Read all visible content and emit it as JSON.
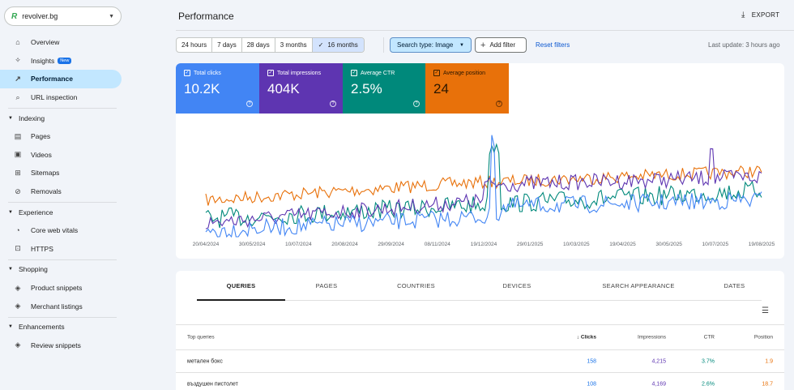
{
  "property": {
    "name": "revolver.bg"
  },
  "sidebar": {
    "items": [
      {
        "label": "Overview",
        "icon": "home-icon",
        "glyph": "⌂"
      },
      {
        "label": "Insights",
        "icon": "lightbulb-icon",
        "glyph": "✧",
        "badge": "New"
      },
      {
        "label": "Performance",
        "icon": "trending-icon",
        "glyph": "↗",
        "active": true
      },
      {
        "label": "URL inspection",
        "icon": "search-icon",
        "glyph": "⌕"
      }
    ],
    "sections": [
      {
        "title": "Indexing",
        "items": [
          {
            "label": "Pages",
            "icon": "pages-icon",
            "glyph": "▤"
          },
          {
            "label": "Videos",
            "icon": "video-icon",
            "glyph": "▣"
          },
          {
            "label": "Sitemaps",
            "icon": "sitemap-icon",
            "glyph": "⊞"
          },
          {
            "label": "Removals",
            "icon": "removal-icon",
            "glyph": "⊘"
          }
        ]
      },
      {
        "title": "Experience",
        "items": [
          {
            "label": "Core web vitals",
            "icon": "speed-icon",
            "glyph": "◔"
          },
          {
            "label": "HTTPS",
            "icon": "lock-icon",
            "glyph": "⊡"
          }
        ]
      },
      {
        "title": "Shopping",
        "items": [
          {
            "label": "Product snippets",
            "icon": "diamond-icon",
            "glyph": "◈"
          },
          {
            "label": "Merchant listings",
            "icon": "diamond-icon",
            "glyph": "◈"
          }
        ]
      },
      {
        "title": "Enhancements",
        "items": [
          {
            "label": "Review snippets",
            "icon": "diamond-icon",
            "glyph": "◈"
          }
        ]
      }
    ]
  },
  "header": {
    "title": "Performance",
    "export_label": "EXPORT"
  },
  "filters": {
    "dates": [
      "24 hours",
      "7 days",
      "28 days",
      "3 months",
      "16 months"
    ],
    "selected_date": "16 months",
    "search_type": "Search type: Image",
    "add_filter": "Add filter",
    "reset": "Reset filters",
    "last_update": "Last update: 3 hours ago"
  },
  "metrics": [
    {
      "key": "clicks",
      "label": "Total clicks",
      "value": "10.2K",
      "color": "#4285f4"
    },
    {
      "key": "impr",
      "label": "Total impressions",
      "value": "404K",
      "color": "#5e35b1"
    },
    {
      "key": "ctr",
      "label": "Average CTR",
      "value": "2.5%",
      "color": "#00897b"
    },
    {
      "key": "pos",
      "label": "Average position",
      "value": "24",
      "color": "#e8710a"
    }
  ],
  "chart_data": {
    "type": "line",
    "x_ticks": [
      "20/04/2024",
      "30/05/2024",
      "10/07/2024",
      "20/08/2024",
      "29/09/2024",
      "08/11/2024",
      "19/12/2024",
      "29/01/2025",
      "10/03/2025",
      "19/04/2025",
      "30/05/2025",
      "10/07/2025",
      "19/08/2025"
    ],
    "series": [
      {
        "name": "Total clicks",
        "color": "#4285f4"
      },
      {
        "name": "Total impressions",
        "color": "#5e35b1"
      },
      {
        "name": "Average CTR",
        "color": "#00897b"
      },
      {
        "name": "Average position",
        "color": "#e8710a"
      }
    ],
    "grid": false
  },
  "table": {
    "tabs": [
      "QUERIES",
      "PAGES",
      "COUNTRIES",
      "DEVICES",
      "SEARCH APPEARANCE",
      "DATES"
    ],
    "active_tab": "QUERIES",
    "headers": {
      "query": "Top queries",
      "clicks": "Clicks",
      "impressions": "Impressions",
      "ctr": "CTR",
      "position": "Position"
    },
    "rows": [
      {
        "query": "метален бокс",
        "clicks": "158",
        "impressions": "4,215",
        "ctr": "3.7%",
        "position": "1.9"
      },
      {
        "query": "въздушен пистолет",
        "clicks": "108",
        "impressions": "4,169",
        "ctr": "2.6%",
        "position": "18.7"
      }
    ]
  }
}
